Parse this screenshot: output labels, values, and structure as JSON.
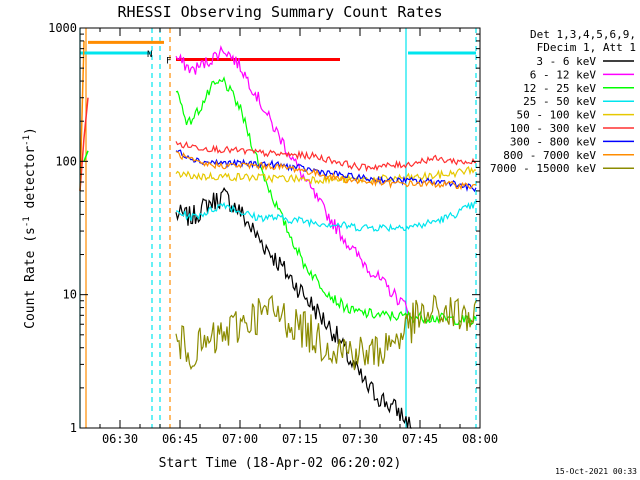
{
  "chart_data": {
    "type": "line",
    "title": "RHESSI Observing Summary Count Rates",
    "xlabel": "Start Time (18-Apr-02 06:20:02)",
    "ylabel_main": "Count Rate (s",
    "ylabel_sup1": "-1",
    "ylabel_mid": " detector",
    "ylabel_sup2": "-1",
    "ylabel_end": ")",
    "yscale": "log",
    "ylim": [
      1,
      1000
    ],
    "xlim": [
      "06:20",
      "08:00"
    ],
    "x_ticks": [
      "06:30",
      "06:45",
      "07:00",
      "07:15",
      "07:30",
      "07:45",
      "08:00"
    ],
    "y_ticks": [
      "1000",
      "100",
      "10",
      "1"
    ],
    "legend_header": [
      "Det 1,3,4,5,6,9,",
      "FDecim 1, Att 1"
    ],
    "legend_position": "right",
    "stamp": "15-Oct-2021 00:33",
    "flag_labels": {
      "n": "N",
      "f": "F"
    },
    "series": [
      {
        "name": "3 - 6 keV",
        "color": "#000000",
        "points": [
          [
            "06:44",
            40
          ],
          [
            "06:48",
            38
          ],
          [
            "06:52",
            48
          ],
          [
            "06:56",
            55
          ],
          [
            "07:00",
            42
          ],
          [
            "07:04",
            28
          ],
          [
            "07:08",
            20
          ],
          [
            "07:12",
            14
          ],
          [
            "07:16",
            10
          ],
          [
            "07:20",
            7
          ],
          [
            "07:24",
            5
          ],
          [
            "07:28",
            3
          ],
          [
            "07:32",
            2
          ],
          [
            "07:36",
            1.6
          ],
          [
            "07:40",
            1.3
          ],
          [
            "07:43",
            1
          ]
        ]
      },
      {
        "name": "6 - 12 keV",
        "color": "#ff00ff",
        "points": [
          [
            "06:44",
            600
          ],
          [
            "06:48",
            480
          ],
          [
            "06:52",
            560
          ],
          [
            "06:56",
            700
          ],
          [
            "07:00",
            520
          ],
          [
            "07:04",
            320
          ],
          [
            "07:08",
            190
          ],
          [
            "07:12",
            120
          ],
          [
            "07:16",
            75
          ],
          [
            "07:20",
            48
          ],
          [
            "07:24",
            32
          ],
          [
            "07:28",
            22
          ],
          [
            "07:32",
            16
          ],
          [
            "07:36",
            12
          ],
          [
            "07:40",
            9
          ],
          [
            "07:42",
            8
          ]
        ]
      },
      {
        "name": "12 - 25 keV",
        "color": "#00ff00",
        "points": [
          [
            "06:44",
            350
          ],
          [
            "06:47",
            190
          ],
          [
            "06:50",
            250
          ],
          [
            "06:53",
            360
          ],
          [
            "06:56",
            400
          ],
          [
            "07:00",
            250
          ],
          [
            "07:04",
            110
          ],
          [
            "07:08",
            55
          ],
          [
            "07:12",
            30
          ],
          [
            "07:16",
            17
          ],
          [
            "07:20",
            12
          ],
          [
            "07:24",
            9
          ],
          [
            "07:28",
            7.5
          ],
          [
            "07:35",
            7
          ],
          [
            "07:45",
            6.8
          ],
          [
            "07:55",
            6.5
          ],
          [
            "07:59",
            6.3
          ]
        ]
      },
      {
        "name": "25 - 50 keV",
        "color": "#00e5ee",
        "points": [
          [
            "06:44",
            42
          ],
          [
            "06:48",
            38
          ],
          [
            "06:52",
            42
          ],
          [
            "06:56",
            48
          ],
          [
            "07:00",
            42
          ],
          [
            "07:04",
            38
          ],
          [
            "07:08",
            38
          ],
          [
            "07:15",
            36
          ],
          [
            "07:22",
            34
          ],
          [
            "07:30",
            32
          ],
          [
            "07:38",
            32
          ],
          [
            "07:45",
            33
          ],
          [
            "07:52",
            38
          ],
          [
            "07:59",
            48
          ]
        ]
      },
      {
        "name": "50 - 100 keV",
        "color": "#e6c800",
        "points": [
          [
            "06:44",
            80
          ],
          [
            "06:50",
            77
          ],
          [
            "06:56",
            77
          ],
          [
            "07:02",
            76
          ],
          [
            "07:08",
            75
          ],
          [
            "07:15",
            74
          ],
          [
            "07:22",
            73
          ],
          [
            "07:30",
            73
          ],
          [
            "07:38",
            74
          ],
          [
            "07:45",
            76
          ],
          [
            "07:52",
            80
          ],
          [
            "07:59",
            88
          ]
        ]
      },
      {
        "name": "100 - 300 keV",
        "color": "#ff3030",
        "points": [
          [
            "06:44",
            135
          ],
          [
            "06:50",
            127
          ],
          [
            "06:56",
            122
          ],
          [
            "07:00",
            120
          ],
          [
            "07:06",
            115
          ],
          [
            "07:12",
            112
          ],
          [
            "07:18",
            110
          ],
          [
            "07:24",
            100
          ],
          [
            "07:30",
            90
          ],
          [
            "07:36",
            92
          ],
          [
            "07:42",
            95
          ],
          [
            "07:48",
            105
          ],
          [
            "07:54",
            100
          ],
          [
            "07:59",
            98
          ]
        ]
      },
      {
        "name": "300 - 800 keV",
        "color": "#0000ff",
        "points": [
          [
            "06:44",
            120
          ],
          [
            "06:50",
            100
          ],
          [
            "06:56",
            97
          ],
          [
            "07:02",
            96
          ],
          [
            "07:08",
            95
          ],
          [
            "07:14",
            90
          ],
          [
            "07:20",
            84
          ],
          [
            "07:26",
            78
          ],
          [
            "07:32",
            74
          ],
          [
            "07:38",
            72
          ],
          [
            "07:45",
            71
          ],
          [
            "07:52",
            70
          ],
          [
            "07:59",
            62
          ]
        ]
      },
      {
        "name": "800 - 7000 keV",
        "color": "#ff8c00",
        "points": [
          [
            "06:44",
            115
          ],
          [
            "06:50",
            95
          ],
          [
            "06:56",
            93
          ],
          [
            "07:02",
            93
          ],
          [
            "07:08",
            92
          ],
          [
            "07:14",
            88
          ],
          [
            "07:20",
            80
          ],
          [
            "07:26",
            73
          ],
          [
            "07:32",
            70
          ],
          [
            "07:38",
            68
          ],
          [
            "07:45",
            68
          ],
          [
            "07:52",
            67
          ],
          [
            "07:59",
            65
          ]
        ]
      },
      {
        "name": "7000 - 15000 keV",
        "color": "#8b8b00",
        "points": [
          [
            "06:44",
            4.5
          ],
          [
            "06:48",
            3.8
          ],
          [
            "06:52",
            4.2
          ],
          [
            "06:56",
            5
          ],
          [
            "07:00",
            6
          ],
          [
            "07:04",
            7
          ],
          [
            "07:08",
            7.5
          ],
          [
            "07:12",
            6.5
          ],
          [
            "07:16",
            5.5
          ],
          [
            "07:20",
            4.5
          ],
          [
            "07:24",
            4
          ],
          [
            "07:28",
            3.8
          ],
          [
            "07:32",
            3.5
          ],
          [
            "07:36",
            4
          ],
          [
            "07:40",
            5
          ],
          [
            "07:44",
            6.5
          ],
          [
            "07:50",
            7.5
          ],
          [
            "07:55",
            7
          ],
          [
            "07:59",
            6.5
          ]
        ]
      }
    ],
    "early_segment": [
      {
        "color": "#ff3030",
        "points": [
          [
            "06:20",
            60
          ],
          [
            "06:21",
            150
          ],
          [
            "06:22",
            300
          ]
        ]
      },
      {
        "color": "#00ff00",
        "points": [
          [
            "06:21",
            100
          ],
          [
            "06:22",
            120
          ]
        ]
      },
      {
        "color": "#ff8c00",
        "points": [
          [
            "06:20",
            60
          ],
          [
            "06:21",
            800
          ]
        ]
      }
    ],
    "attenuator_bars": [
      {
        "color": "#00e5ee",
        "from": "06:20",
        "to": "06:38",
        "y": 650
      },
      {
        "color": "#ff8c00",
        "from": "06:22",
        "to": "06:41",
        "y": 780
      },
      {
        "color": "#ff0000",
        "from": "06:44",
        "to": "07:25",
        "y": 580
      },
      {
        "color": "#00e5ee",
        "from": "07:42",
        "to": "07:59",
        "y": 650
      }
    ],
    "vertical_lines": [
      {
        "color": "#00e5ee",
        "x": "06:20",
        "style": "solid"
      },
      {
        "color": "#ff8c00",
        "x": "06:21.5",
        "style": "solid"
      },
      {
        "color": "#00e5ee",
        "x": "06:38",
        "style": "dashed"
      },
      {
        "color": "#00e5ee",
        "x": "06:40",
        "style": "dashed"
      },
      {
        "color": "#ff8c00",
        "x": "06:42.5",
        "style": "dashed"
      },
      {
        "color": "#00e5ee",
        "x": "07:41.5",
        "style": "solid"
      },
      {
        "color": "#00e5ee",
        "x": "07:59",
        "style": "dashed"
      }
    ]
  }
}
